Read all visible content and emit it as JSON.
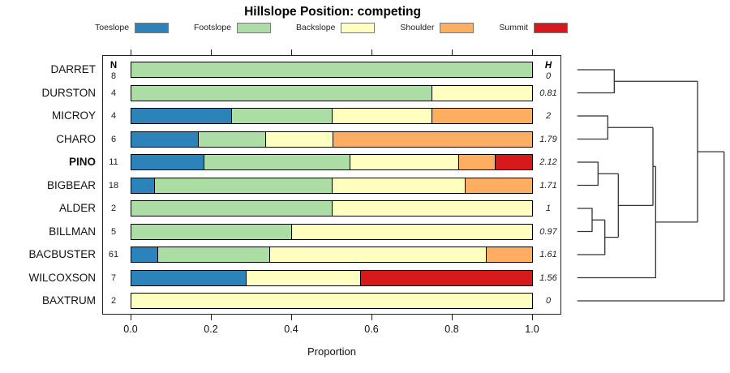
{
  "title": "Hillslope Position: competing",
  "xlabel": "Proportion",
  "columns": {
    "n_header": "N",
    "h_header": "H"
  },
  "legend": [
    {
      "label": "Toeslope",
      "color": "#2B83BA"
    },
    {
      "label": "Footslope",
      "color": "#ABDDA4"
    },
    {
      "label": "Backslope",
      "color": "#FFFFBF"
    },
    {
      "label": "Shoulder",
      "color": "#FDAE61"
    },
    {
      "label": "Summit",
      "color": "#D7191C"
    }
  ],
  "chart_data": {
    "type": "bar",
    "stacked": true,
    "orientation": "horizontal",
    "xlabel": "Proportion",
    "xlim": [
      0,
      1
    ],
    "x_ticks": [
      "0.0",
      "0.2",
      "0.4",
      "0.6",
      "0.8",
      "1.0"
    ],
    "categories": [
      "Toeslope",
      "Footslope",
      "Backslope",
      "Shoulder",
      "Summit"
    ],
    "rows": [
      {
        "label": "DARRET",
        "n": "8",
        "h": "0",
        "bold": false,
        "proportions": [
          0,
          1,
          0,
          0,
          0
        ]
      },
      {
        "label": "DURSTON",
        "n": "4",
        "h": "0.81",
        "bold": false,
        "proportions": [
          0,
          0.75,
          0.25,
          0,
          0
        ]
      },
      {
        "label": "MICROY",
        "n": "4",
        "h": "2",
        "bold": false,
        "proportions": [
          0.25,
          0.25,
          0.25,
          0.25,
          0
        ]
      },
      {
        "label": "CHARO",
        "n": "6",
        "h": "1.79",
        "bold": false,
        "proportions": [
          0.167,
          0.166,
          0.167,
          0.5,
          0
        ]
      },
      {
        "label": "PINO",
        "n": "11",
        "h": "2.12",
        "bold": true,
        "proportions": [
          0.182,
          0.364,
          0.272,
          0.091,
          0.091
        ]
      },
      {
        "label": "BIGBEAR",
        "n": "18",
        "h": "1.71",
        "bold": false,
        "proportions": [
          0.056,
          0.444,
          0.333,
          0.167,
          0
        ]
      },
      {
        "label": "ALDER",
        "n": "2",
        "h": "1",
        "bold": false,
        "proportions": [
          0,
          0.5,
          0.5,
          0,
          0
        ]
      },
      {
        "label": "BILLMAN",
        "n": "5",
        "h": "0.97",
        "bold": false,
        "proportions": [
          0,
          0.4,
          0.6,
          0,
          0
        ]
      },
      {
        "label": "BACBUSTER",
        "n": "61",
        "h": "1.61",
        "bold": false,
        "proportions": [
          0.066,
          0.279,
          0.541,
          0.114,
          0
        ]
      },
      {
        "label": "WILCOXSON",
        "n": "7",
        "h": "1.56",
        "bold": false,
        "proportions": [
          0.286,
          0,
          0.285,
          0,
          0.429
        ]
      },
      {
        "label": "BAXTRUM",
        "n": "2",
        "h": "0",
        "bold": false,
        "proportions": [
          0,
          0,
          1,
          0,
          0
        ]
      }
    ]
  },
  "dendrogram": {
    "topology": "((DARRET,DURSTON),(((MICROY,CHARO),((PINO,BIGBEAR),((ALDER,BILLMAN),BACBUSTER))),WILCOXSON)),BAXTRUM",
    "line_color": "#333333",
    "paths": [
      "M11.7 86 H57.3 V114.5 H11.7",
      "M57.3 100.25 H160",
      "M11.7 143 H49.3 V171.5 H11.7",
      "M49.3 157.25 H105",
      "M11.7 200 H37.3 V228.5 H11.7",
      "M37.3 214.25 H62.3",
      "M11.7 257 H30 V285.5 H11.7",
      "M30 271.25 H45.7",
      "M45.7 271.25 V314 H11.7",
      "M45.7 292.6 H62.3",
      "M62.3 214.25 V292.6",
      "M62.3 253.4 H105",
      "M105 157.25 V253.4",
      "M105 205.3 H108.3",
      "M108.3 205.3 V342.5 H11.7",
      "M108.3 273.9 H160",
      "M160 100.25 V273.9",
      "M160 187.1 H192.7",
      "M192.7 187.1 V371 H11.7"
    ]
  }
}
